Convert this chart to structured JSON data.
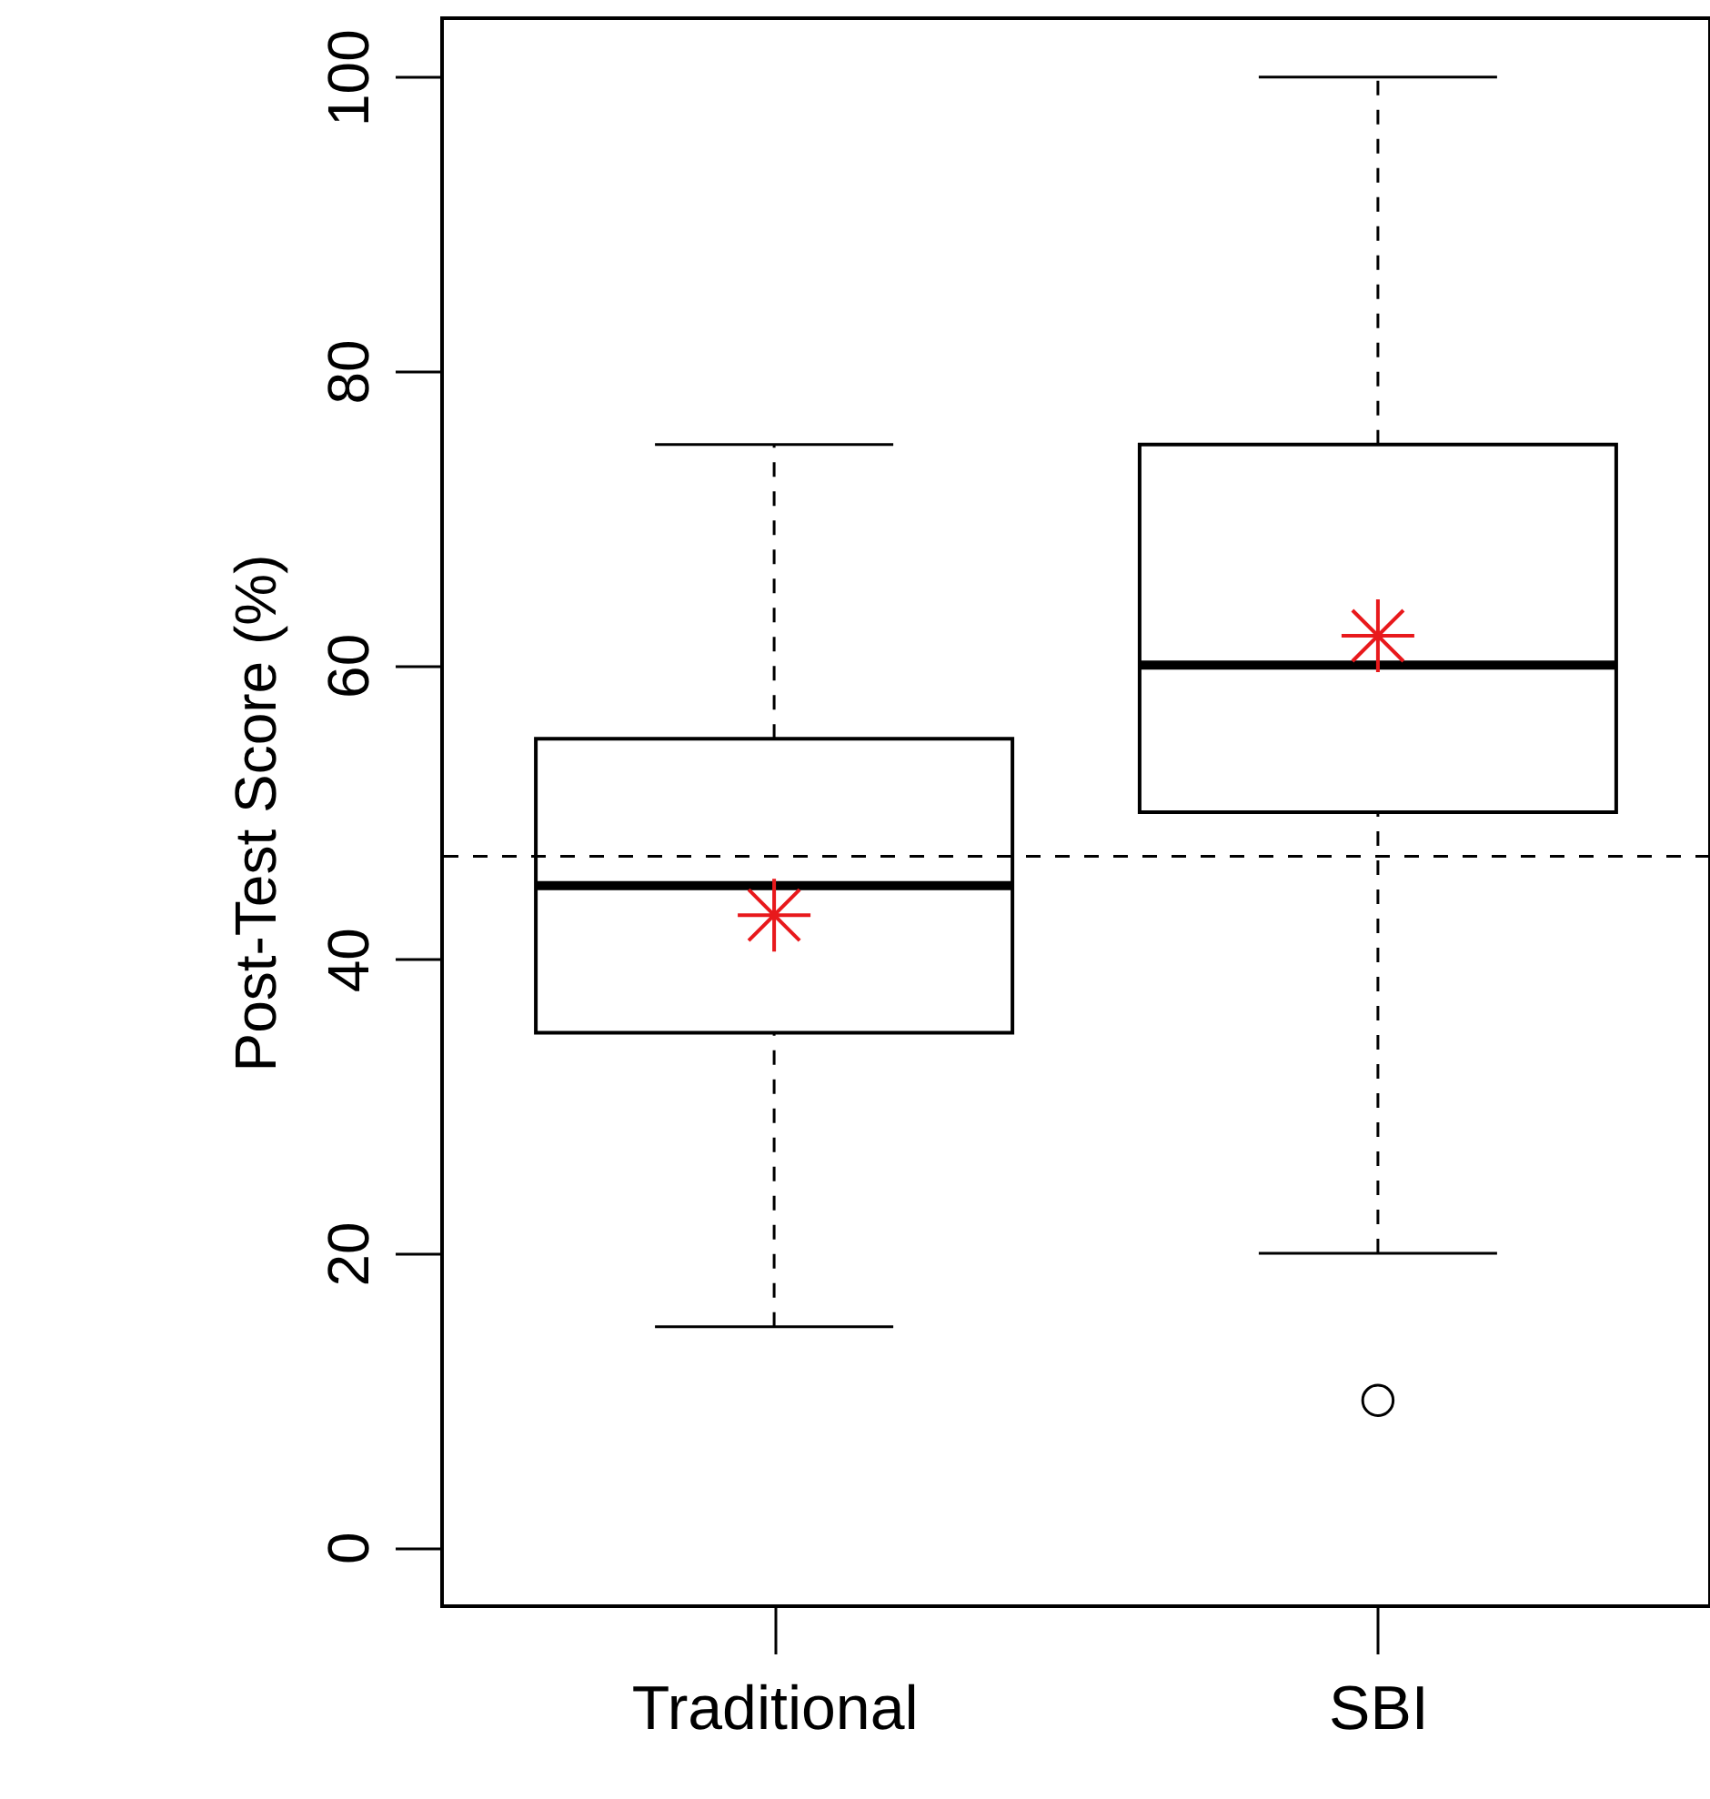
{
  "chart_data": {
    "type": "box",
    "ylabel": "Post-Test Score (%)",
    "categories": [
      "Traditional",
      "SBI"
    ],
    "boxes": [
      {
        "low": 15,
        "q1": 35,
        "median": 45,
        "q3": 55,
        "high": 75,
        "mean": 43
      },
      {
        "low": 20,
        "q1": 50,
        "median": 60,
        "q3": 75,
        "high": 100,
        "mean": 62,
        "outliers": [
          10
        ]
      }
    ],
    "ylim": [
      -4,
      104
    ],
    "yticks": [
      0,
      20,
      40,
      60,
      80,
      100
    ],
    "grid": false,
    "ref_lines": [
      {
        "axis": "y",
        "value": 47,
        "line_style": "dashed"
      }
    ]
  }
}
